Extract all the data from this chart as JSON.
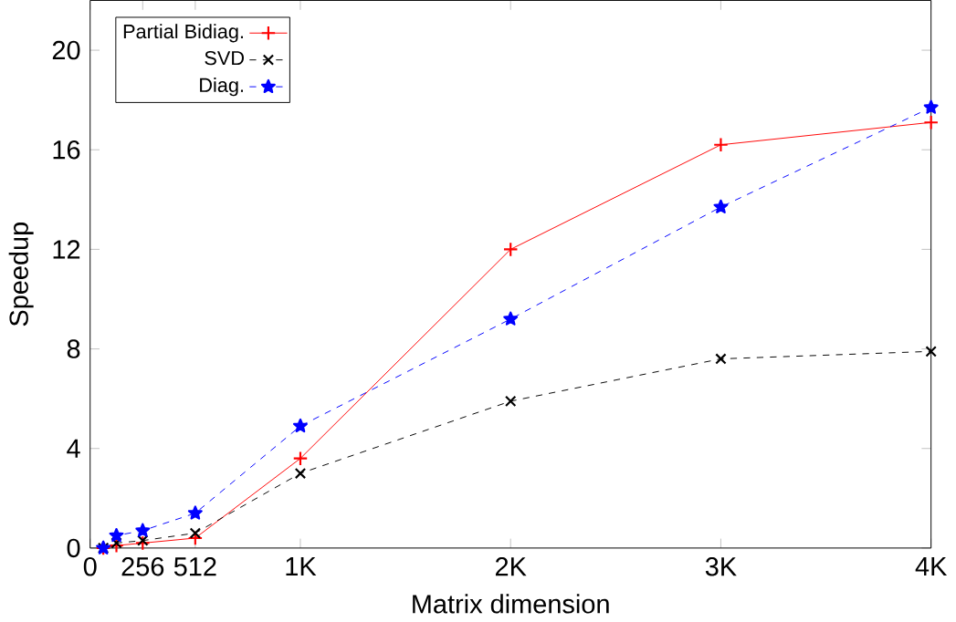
{
  "chart_data": {
    "type": "line",
    "xlabel": "Matrix dimension",
    "ylabel": "Speedup",
    "x": [
      64,
      128,
      256,
      512,
      1024,
      2048,
      3072,
      4096
    ],
    "xlim": [
      0,
      4096
    ],
    "ylim": [
      0,
      22
    ],
    "xticks": [
      0,
      256,
      512,
      {
        "value": 1024,
        "label": "1K"
      },
      {
        "value": 2048,
        "label": "2K"
      },
      {
        "value": 3072,
        "label": "3K"
      },
      {
        "value": 4096,
        "label": "4K"
      }
    ],
    "yticks": [
      0,
      4,
      8,
      12,
      16,
      20
    ],
    "grid": false,
    "legend": "top left",
    "series": [
      {
        "name": "Partial Bidiag.",
        "color": "#ff0000",
        "marker": "plus",
        "line_style": "solid",
        "values": [
          0,
          0.1,
          0.2,
          0.4,
          3.6,
          12.0,
          16.2,
          17.1
        ]
      },
      {
        "name": "SVD",
        "color": "#000000",
        "marker": "cross",
        "line_style": "dashed",
        "values": [
          0,
          0.2,
          0.3,
          0.6,
          3.0,
          5.9,
          7.6,
          7.9
        ]
      },
      {
        "name": "Diag.",
        "color": "#0000ff",
        "marker": "star",
        "line_style": "dashed",
        "values": [
          0,
          0.5,
          0.7,
          1.4,
          4.9,
          9.2,
          13.7,
          17.7
        ]
      }
    ]
  }
}
